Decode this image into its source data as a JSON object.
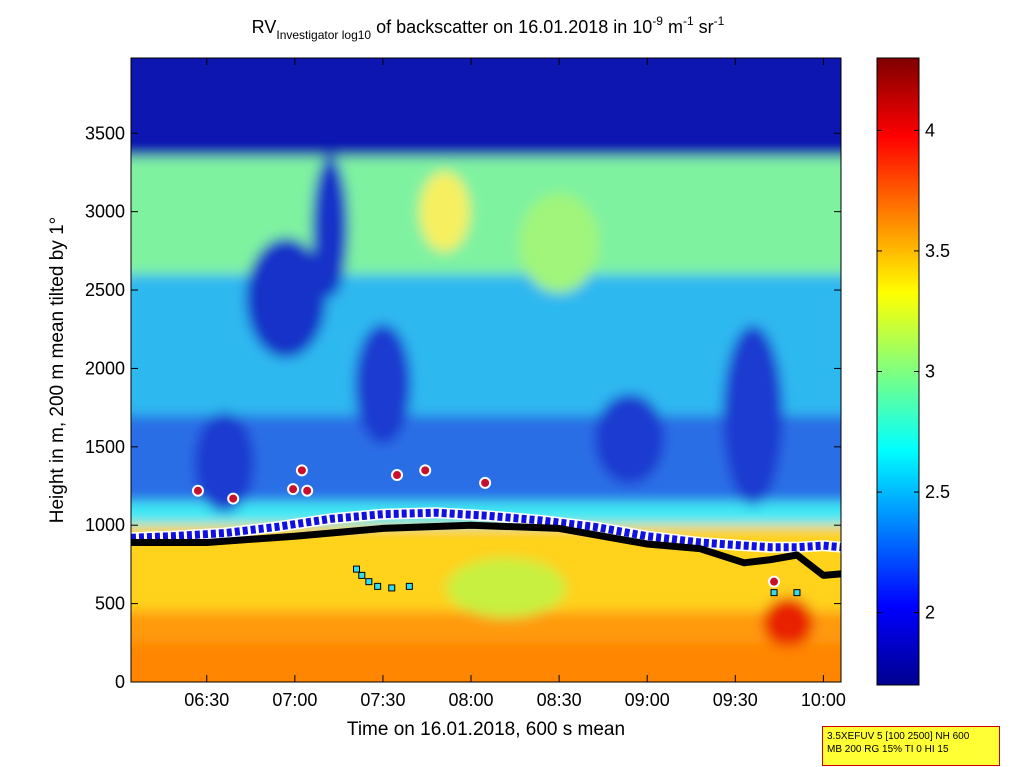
{
  "title": {
    "part1": "RV",
    "part2": "Investigator log",
    "sub": "10",
    "part3": " of backscatter on 16.01.2018 in 10",
    "sup1": "-9",
    "part4": " m",
    "sup2": "-1",
    "part5": " sr",
    "sup3": "-1"
  },
  "info_box": {
    "line1": "3.5XEFUV 5 [100 2500] NH 600",
    "line2": "MB 200 RG 15% TI 0 HI 15"
  },
  "colormap": "jet",
  "chart_data": {
    "type": "heatmap",
    "title": "RV Investigator log10 of backscatter on 16.01.2018 in 10^-9 m^-1 sr^-1",
    "xlabel": "Time on 16.01.2018, 600 s mean",
    "ylabel": "Height in m, 200 m mean tilted by 1°",
    "x_ticks": [
      "06:30",
      "07:00",
      "07:30",
      "08:00",
      "08:30",
      "09:00",
      "09:30",
      "10:00"
    ],
    "x_tick_hours": [
      6.5,
      7.0,
      7.5,
      8.0,
      8.5,
      9.0,
      9.5,
      10.0
    ],
    "xlim_hours": [
      6.07,
      10.1
    ],
    "y_ticks": [
      0,
      500,
      1000,
      1500,
      2000,
      2500,
      3000,
      3500
    ],
    "ylim": [
      0,
      3980
    ],
    "colorbar": {
      "ticks": [
        2,
        2.5,
        3,
        3.5,
        4
      ],
      "range": [
        1.7,
        4.3
      ]
    },
    "grid": false,
    "cloud_base_height": [
      {
        "t": 6.07,
        "h": 920
      },
      {
        "t": 6.3,
        "h": 930
      },
      {
        "t": 6.6,
        "h": 950
      },
      {
        "t": 6.9,
        "h": 990
      },
      {
        "t": 7.2,
        "h": 1040
      },
      {
        "t": 7.5,
        "h": 1070
      },
      {
        "t": 7.8,
        "h": 1080
      },
      {
        "t": 8.1,
        "h": 1060
      },
      {
        "t": 8.4,
        "h": 1030
      },
      {
        "t": 8.7,
        "h": 990
      },
      {
        "t": 9.0,
        "h": 930
      },
      {
        "t": 9.3,
        "h": 890
      },
      {
        "t": 9.55,
        "h": 870
      },
      {
        "t": 9.7,
        "h": 860
      },
      {
        "t": 9.85,
        "h": 860
      },
      {
        "t": 10.0,
        "h": 870
      },
      {
        "t": 10.1,
        "h": 860
      }
    ],
    "boundary_layer_height": [
      {
        "t": 6.07,
        "h": 890
      },
      {
        "t": 6.5,
        "h": 890
      },
      {
        "t": 7.0,
        "h": 930
      },
      {
        "t": 7.5,
        "h": 980
      },
      {
        "t": 8.0,
        "h": 1000
      },
      {
        "t": 8.5,
        "h": 980
      },
      {
        "t": 9.0,
        "h": 880
      },
      {
        "t": 9.3,
        "h": 850
      },
      {
        "t": 9.55,
        "h": 760
      },
      {
        "t": 9.7,
        "h": 780
      },
      {
        "t": 9.85,
        "h": 810
      },
      {
        "t": 10.0,
        "h": 680
      },
      {
        "t": 10.1,
        "h": 690
      }
    ],
    "elevated_layer_points": [
      {
        "t": 6.45,
        "h": 1220
      },
      {
        "t": 6.65,
        "h": 1170
      },
      {
        "t": 6.99,
        "h": 1230
      },
      {
        "t": 7.04,
        "h": 1350
      },
      {
        "t": 7.07,
        "h": 1220
      },
      {
        "t": 7.58,
        "h": 1320
      },
      {
        "t": 7.74,
        "h": 1350
      },
      {
        "t": 8.08,
        "h": 1270
      },
      {
        "t": 9.72,
        "h": 640
      }
    ],
    "lower_layer_points": [
      {
        "t": 7.35,
        "h": 720
      },
      {
        "t": 7.38,
        "h": 680
      },
      {
        "t": 7.42,
        "h": 640
      },
      {
        "t": 7.47,
        "h": 610
      },
      {
        "t": 7.55,
        "h": 600
      },
      {
        "t": 7.65,
        "h": 610
      },
      {
        "t": 9.72,
        "h": 570
      },
      {
        "t": 9.85,
        "h": 570
      }
    ]
  }
}
